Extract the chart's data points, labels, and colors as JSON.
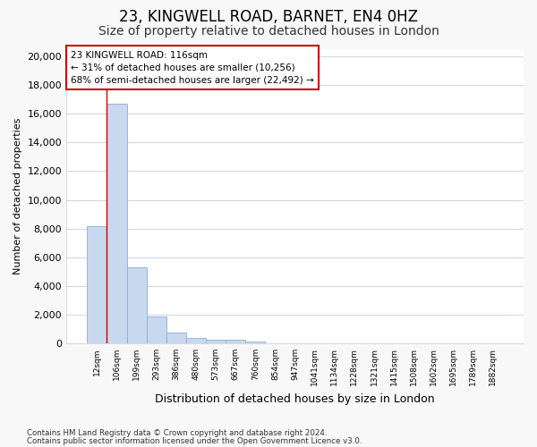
{
  "title1": "23, KINGWELL ROAD, BARNET, EN4 0HZ",
  "title2": "Size of property relative to detached houses in London",
  "xlabel": "Distribution of detached houses by size in London",
  "ylabel": "Number of detached properties",
  "categories": [
    "12sqm",
    "106sqm",
    "199sqm",
    "293sqm",
    "386sqm",
    "480sqm",
    "573sqm",
    "667sqm",
    "760sqm",
    "854sqm",
    "947sqm",
    "1041sqm",
    "1134sqm",
    "1228sqm",
    "1321sqm",
    "1415sqm",
    "1508sqm",
    "1602sqm",
    "1695sqm",
    "1789sqm",
    "1882sqm"
  ],
  "bar_heights": [
    8200,
    16700,
    5300,
    1850,
    780,
    370,
    280,
    230,
    160,
    0,
    0,
    0,
    0,
    0,
    0,
    0,
    0,
    0,
    0,
    0,
    0
  ],
  "bar_color": "#c8d8ee",
  "bar_edge_color": "#8ab0d8",
  "vline_x_index": 1,
  "vline_color": "#cc0000",
  "ylim": [
    0,
    20500
  ],
  "yticks": [
    0,
    2000,
    4000,
    6000,
    8000,
    10000,
    12000,
    14000,
    16000,
    18000,
    20000
  ],
  "annotation_title": "23 KINGWELL ROAD: 116sqm",
  "annotation_line1": "← 31% of detached houses are smaller (10,256)",
  "annotation_line2": "68% of semi-detached houses are larger (22,492) →",
  "annotation_box_color": "#ffffff",
  "annotation_box_edge": "#cc0000",
  "footer1": "Contains HM Land Registry data © Crown copyright and database right 2024.",
  "footer2": "Contains public sector information licensed under the Open Government Licence v3.0.",
  "plot_bg_color": "#ffffff",
  "fig_bg_color": "#f8f8f8",
  "grid_color": "#d0d8e8",
  "title1_fontsize": 12,
  "title2_fontsize": 10
}
